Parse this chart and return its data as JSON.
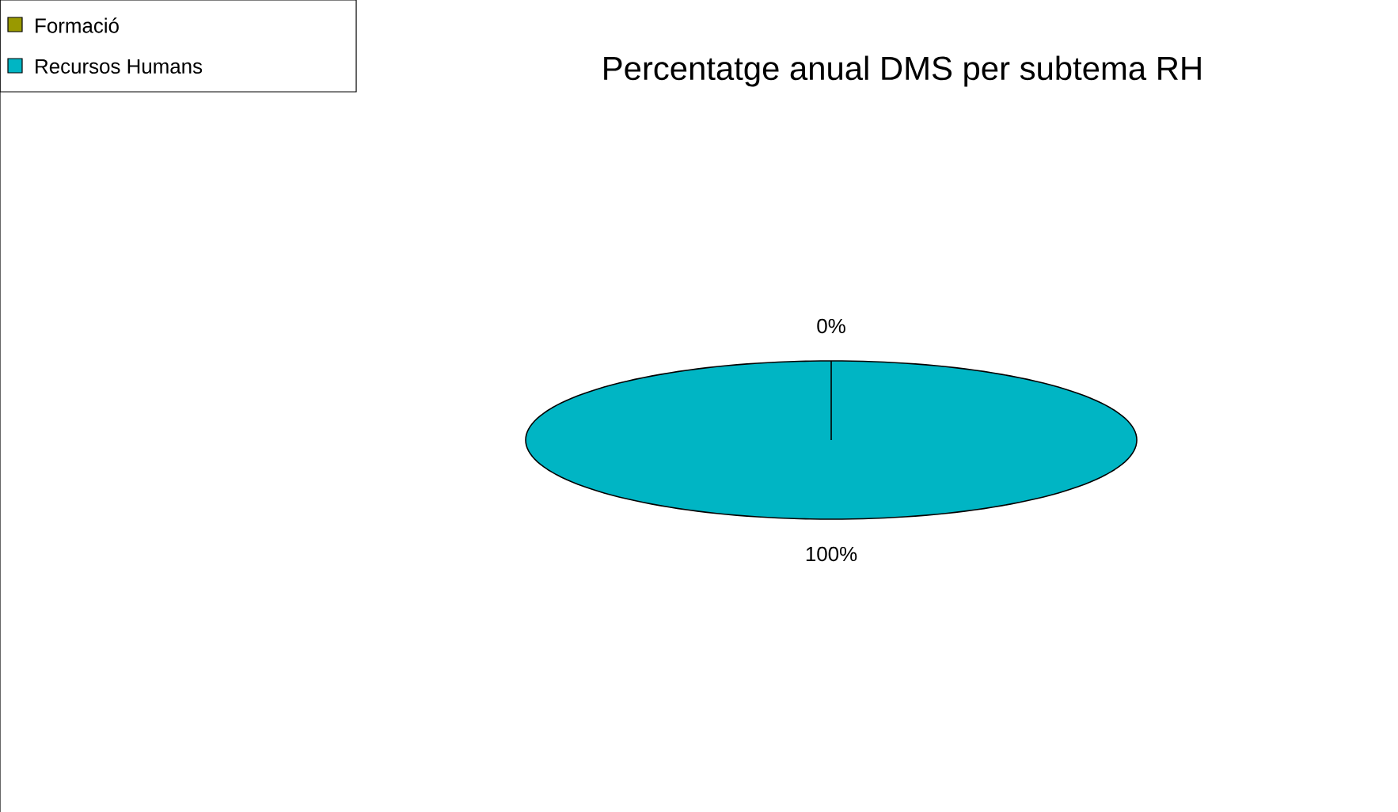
{
  "chart_data": {
    "type": "pie",
    "title": "Percentatge anual DMS per subtema RH",
    "categories": [
      "Formació",
      "Recursos Humans"
    ],
    "values": [
      0,
      100
    ],
    "colors": [
      "#999900",
      "#00b5c4"
    ],
    "value_labels": [
      "0%",
      "100%"
    ],
    "legend": "top left"
  }
}
